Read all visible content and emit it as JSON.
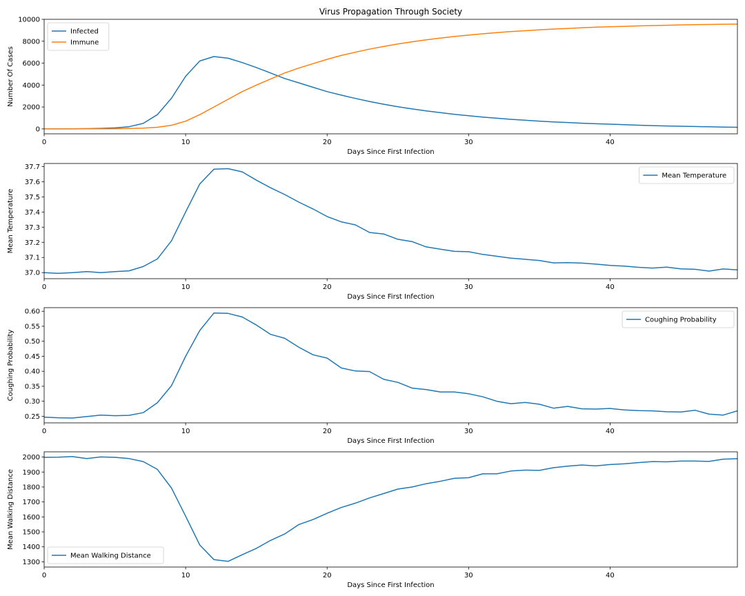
{
  "chart_data": [
    {
      "type": "line",
      "title": "Virus Propagation Through Society",
      "xlabel": "Days Since First Infection",
      "ylabel": "Number Of Cases",
      "xlim": [
        0,
        49
      ],
      "ylim": [
        -450,
        10000
      ],
      "xticks": [
        0,
        10,
        20,
        30,
        40
      ],
      "yticks": [
        0,
        2000,
        4000,
        6000,
        8000,
        10000
      ],
      "legend": "top-left",
      "x": [
        0,
        1,
        2,
        3,
        4,
        5,
        6,
        7,
        8,
        9,
        10,
        11,
        12,
        13,
        14,
        15,
        16,
        17,
        18,
        19,
        20,
        21,
        22,
        23,
        24,
        25,
        26,
        27,
        28,
        29,
        30,
        31,
        32,
        33,
        34,
        35,
        36,
        37,
        38,
        39,
        40,
        41,
        42,
        43,
        44,
        45,
        46,
        47,
        48,
        49
      ],
      "series": [
        {
          "name": "Infected",
          "color": "#1f77b4",
          "values": [
            1,
            3,
            8,
            20,
            45,
            90,
            200,
            500,
            1300,
            2800,
            4800,
            6200,
            6600,
            6450,
            6050,
            5600,
            5100,
            4600,
            4200,
            3800,
            3400,
            3080,
            2780,
            2500,
            2250,
            2020,
            1820,
            1640,
            1480,
            1330,
            1200,
            1080,
            970,
            870,
            790,
            710,
            640,
            580,
            520,
            470,
            430,
            390,
            340,
            300,
            270,
            240,
            220,
            190,
            170,
            150
          ]
        },
        {
          "name": "Immune",
          "color": "#ff7f0e",
          "values": [
            0,
            0,
            0,
            2,
            5,
            15,
            35,
            70,
            150,
            330,
            700,
            1300,
            2000,
            2700,
            3400,
            4000,
            4550,
            5100,
            5550,
            5950,
            6350,
            6700,
            7000,
            7280,
            7520,
            7750,
            7950,
            8130,
            8290,
            8430,
            8560,
            8680,
            8790,
            8880,
            8960,
            9040,
            9110,
            9170,
            9230,
            9280,
            9320,
            9360,
            9400,
            9430,
            9460,
            9490,
            9510,
            9530,
            9550,
            9560
          ]
        }
      ]
    },
    {
      "type": "line",
      "xlabel": "Days Since First Infection",
      "ylabel": "Mean Temperature",
      "xlim": [
        0,
        49
      ],
      "ylim": [
        36.96,
        37.72
      ],
      "xticks": [
        0,
        10,
        20,
        30,
        40
      ],
      "yticks": [
        "37.0",
        "37.1",
        "37.2",
        "37.3",
        "37.4",
        "37.5",
        "37.6",
        "37.7"
      ],
      "legend": "top-right",
      "x": [
        0,
        1,
        2,
        3,
        4,
        5,
        6,
        7,
        8,
        9,
        10,
        11,
        12,
        13,
        14,
        15,
        16,
        17,
        18,
        19,
        20,
        21,
        22,
        23,
        24,
        25,
        26,
        27,
        28,
        29,
        30,
        31,
        32,
        33,
        34,
        35,
        36,
        37,
        38,
        39,
        40,
        41,
        42,
        43,
        44,
        45,
        46,
        47,
        48,
        49
      ],
      "series": [
        {
          "name": "Mean Temperature",
          "color": "#1f77b4",
          "values": [
            37.0,
            36.995,
            37.0,
            37.007,
            37.0,
            37.007,
            37.012,
            37.04,
            37.09,
            37.21,
            37.4,
            37.585,
            37.682,
            37.686,
            37.665,
            37.61,
            37.56,
            37.515,
            37.465,
            37.42,
            37.37,
            37.335,
            37.315,
            37.265,
            37.255,
            37.22,
            37.205,
            37.17,
            37.155,
            37.14,
            37.138,
            37.12,
            37.108,
            37.095,
            37.088,
            37.08,
            37.064,
            37.066,
            37.063,
            37.056,
            37.048,
            37.043,
            37.035,
            37.03,
            37.036,
            37.025,
            37.022,
            37.01,
            37.024,
            37.018
          ]
        }
      ]
    },
    {
      "type": "line",
      "xlabel": "Days Since First Infection",
      "ylabel": "Coughing Probability",
      "xlim": [
        0,
        49
      ],
      "ylim": [
        0.228,
        0.612
      ],
      "xticks": [
        0,
        10,
        20,
        30,
        40
      ],
      "yticks": [
        "0.25",
        "0.30",
        "0.35",
        "0.40",
        "0.45",
        "0.50",
        "0.55",
        "0.60"
      ],
      "legend": "top-right",
      "x": [
        0,
        1,
        2,
        3,
        4,
        5,
        6,
        7,
        8,
        9,
        10,
        11,
        12,
        13,
        14,
        15,
        16,
        17,
        18,
        19,
        20,
        21,
        22,
        23,
        24,
        25,
        26,
        27,
        28,
        29,
        30,
        31,
        32,
        33,
        34,
        35,
        36,
        37,
        38,
        39,
        40,
        41,
        42,
        43,
        44,
        45,
        46,
        47,
        48,
        49
      ],
      "series": [
        {
          "name": "Coughing Probability",
          "color": "#1f77b4",
          "values": [
            0.247,
            0.245,
            0.244,
            0.249,
            0.254,
            0.252,
            0.253,
            0.262,
            0.295,
            0.352,
            0.45,
            0.536,
            0.594,
            0.593,
            0.581,
            0.554,
            0.523,
            0.51,
            0.48,
            0.455,
            0.444,
            0.411,
            0.401,
            0.399,
            0.373,
            0.363,
            0.344,
            0.339,
            0.331,
            0.331,
            0.325,
            0.315,
            0.3,
            0.292,
            0.296,
            0.29,
            0.277,
            0.283,
            0.275,
            0.274,
            0.276,
            0.271,
            0.269,
            0.268,
            0.265,
            0.264,
            0.27,
            0.257,
            0.254,
            0.268
          ]
        }
      ]
    },
    {
      "type": "line",
      "xlabel": "Days Since First Infection",
      "ylabel": "Mean Walking Distance",
      "xlim": [
        0,
        49
      ],
      "ylim": [
        1265,
        2035
      ],
      "xticks": [
        0,
        10,
        20,
        30,
        40
      ],
      "yticks": [
        1300,
        1400,
        1500,
        1600,
        1700,
        1800,
        1900,
        2000
      ],
      "legend": "bottom-left",
      "x": [
        0,
        1,
        2,
        3,
        4,
        5,
        6,
        7,
        8,
        9,
        10,
        11,
        12,
        13,
        14,
        15,
        16,
        17,
        18,
        19,
        20,
        21,
        22,
        23,
        24,
        25,
        26,
        27,
        28,
        29,
        30,
        31,
        32,
        33,
        34,
        35,
        36,
        37,
        38,
        39,
        40,
        41,
        42,
        43,
        44,
        45,
        46,
        47,
        48,
        49
      ],
      "series": [
        {
          "name": "Mean Walking Distance",
          "color": "#1f77b4",
          "values": [
            1998,
            1999,
            2003,
            1990,
            2001,
            1998,
            1990,
            1970,
            1918,
            1793,
            1605,
            1412,
            1315,
            1303,
            1347,
            1390,
            1443,
            1486,
            1549,
            1582,
            1624,
            1663,
            1692,
            1727,
            1756,
            1786,
            1800,
            1822,
            1838,
            1858,
            1862,
            1888,
            1888,
            1907,
            1913,
            1911,
            1929,
            1939,
            1947,
            1941,
            1950,
            1955,
            1963,
            1970,
            1968,
            1973,
            1973,
            1971,
            1986,
            1989
          ]
        }
      ]
    }
  ]
}
